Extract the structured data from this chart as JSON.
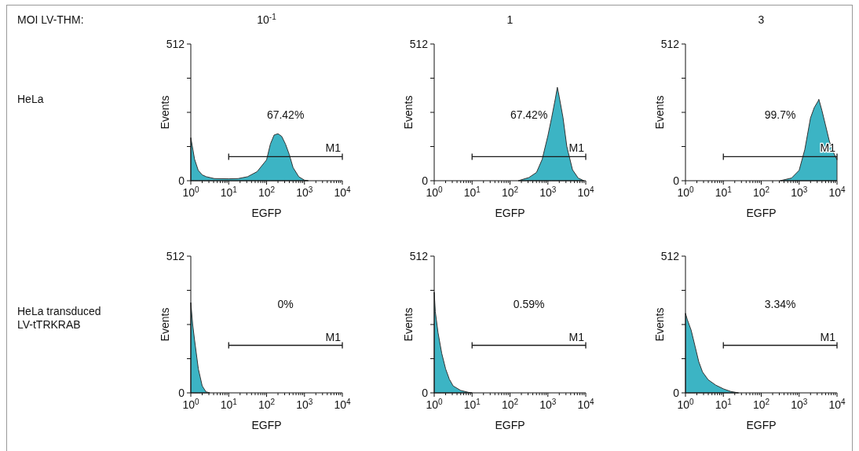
{
  "chart_data": [
    {
      "type": "other",
      "annotations": [
        "MOI LV-THM:",
        "HeLa",
        "HeLa transduced LV-tTRKRAB"
      ]
    },
    {
      "type": "area",
      "title": "10$^{-1}$",
      "xlabel": "EGFP",
      "ylabel": "Events",
      "log": "x",
      "xlim": [
        1,
        10000
      ],
      "ylim": [
        0,
        512
      ],
      "tick_labels": true,
      "xticks": [
        {
          "value": 1,
          "label": "10$^{0}$"
        },
        {
          "value": 2,
          "label": null
        },
        {
          "value": 3,
          "label": null
        },
        {
          "value": 4,
          "label": null
        },
        {
          "value": 5,
          "label": null
        },
        {
          "value": 6,
          "label": null
        },
        {
          "value": 7,
          "label": null
        },
        {
          "value": 8,
          "label": null
        },
        {
          "value": 9,
          "label": null
        },
        {
          "value": 10,
          "label": "10$^{1}$"
        },
        {
          "value": 20,
          "label": null
        },
        {
          "value": 30,
          "label": null
        },
        {
          "value": 40,
          "label": null
        },
        {
          "value": 50,
          "label": null
        },
        {
          "value": 60,
          "label": null
        },
        {
          "value": 70,
          "label": null
        },
        {
          "value": 80,
          "label": null
        },
        {
          "value": 90,
          "label": null
        },
        {
          "value": 100,
          "label": "10$^{2}$"
        },
        {
          "value": 200,
          "label": null
        },
        {
          "value": 300,
          "label": null
        },
        {
          "value": 400,
          "label": null
        },
        {
          "value": 500,
          "label": null
        },
        {
          "value": 600,
          "label": null
        },
        {
          "value": 700,
          "label": null
        },
        {
          "value": 800,
          "label": null
        },
        {
          "value": 900,
          "label": null
        },
        {
          "value": 1000,
          "label": "10$^{3}$"
        },
        {
          "value": 2000,
          "label": null
        },
        {
          "value": 3000,
          "label": null
        },
        {
          "value": 4000,
          "label": null
        },
        {
          "value": 5000,
          "label": null
        },
        {
          "value": 6000,
          "label": null
        },
        {
          "value": 7000,
          "label": null
        },
        {
          "value": 8000,
          "label": null
        },
        {
          "value": 9000,
          "label": null
        },
        {
          "value": 10000,
          "label": "10$^{4}$"
        }
      ],
      "yticks": [
        {
          "value": 0,
          "label": "0"
        },
        {
          "value": 128,
          "label": null
        },
        {
          "value": 256,
          "label": null
        },
        {
          "value": 384,
          "label": null
        },
        {
          "value": 512,
          "label": "512"
        }
      ],
      "series": [
        {
          "color": "#3cb4c4",
          "x": [
            1,
            1.26,
            1.57,
            2.0,
            2.56,
            4.17,
            10,
            17.8,
            31.6,
            56.2,
            100,
            126,
            158,
            200,
            251,
            316,
            398,
            501,
            708,
            1000,
            1259
          ],
          "values": [
            161,
            80,
            39,
            22,
            15,
            8,
            7,
            8,
            15,
            34,
            78,
            137,
            171,
            176,
            166,
            137,
            98,
            49,
            15,
            2,
            0
          ]
        },
        {
          "type": "line",
          "name": "M1",
          "color": "#1a1a1a",
          "x": [
            10,
            10000
          ],
          "values": [
            90,
            90
          ]
        }
      ],
      "annotations": [
        "67.42%"
      ]
    },
    {
      "type": "area",
      "title": "1",
      "xlabel": "EGFP",
      "ylabel": "Events",
      "log": "x",
      "xlim": [
        1,
        10000
      ],
      "ylim": [
        0,
        512
      ],
      "xticks": [
        {
          "value": 1,
          "label": "10$^{0}$"
        },
        {
          "value": 2,
          "label": null
        },
        {
          "value": 3,
          "label": null
        },
        {
          "value": 4,
          "label": null
        },
        {
          "value": 5,
          "label": null
        },
        {
          "value": 6,
          "label": null
        },
        {
          "value": 7,
          "label": null
        },
        {
          "value": 8,
          "label": null
        },
        {
          "value": 9,
          "label": null
        },
        {
          "value": 10,
          "label": "10$^{1}$"
        },
        {
          "value": 20,
          "label": null
        },
        {
          "value": 30,
          "label": null
        },
        {
          "value": 40,
          "label": null
        },
        {
          "value": 50,
          "label": null
        },
        {
          "value": 60,
          "label": null
        },
        {
          "value": 70,
          "label": null
        },
        {
          "value": 80,
          "label": null
        },
        {
          "value": 90,
          "label": null
        },
        {
          "value": 100,
          "label": "10$^{2}$"
        },
        {
          "value": 200,
          "label": null
        },
        {
          "value": 300,
          "label": null
        },
        {
          "value": 400,
          "label": null
        },
        {
          "value": 500,
          "label": null
        },
        {
          "value": 600,
          "label": null
        },
        {
          "value": 700,
          "label": null
        },
        {
          "value": 800,
          "label": null
        },
        {
          "value": 900,
          "label": null
        },
        {
          "value": 1000,
          "label": "10$^{3}$"
        },
        {
          "value": 2000,
          "label": null
        },
        {
          "value": 3000,
          "label": null
        },
        {
          "value": 4000,
          "label": null
        },
        {
          "value": 5000,
          "label": null
        },
        {
          "value": 6000,
          "label": null
        },
        {
          "value": 7000,
          "label": null
        },
        {
          "value": 8000,
          "label": null
        },
        {
          "value": 9000,
          "label": null
        },
        {
          "value": 10000,
          "label": "10$^{4}$"
        }
      ],
      "yticks": [
        {
          "value": 0,
          "label": "0"
        },
        {
          "value": 128,
          "label": null
        },
        {
          "value": 256,
          "label": null
        },
        {
          "value": 384,
          "label": null
        },
        {
          "value": 512,
          "label": "512"
        }
      ],
      "series": [
        {
          "color": "#3cb4c4",
          "x": [
            166,
            316,
            501,
            708,
            1000,
            1259,
            1585,
            1778,
            1995,
            2512,
            3162,
            4467,
            6310,
            8913
          ],
          "values": [
            0,
            12,
            31,
            80,
            168,
            236,
            309,
            350,
            314,
            236,
            129,
            41,
            10,
            0
          ]
        },
        {
          "type": "line",
          "name": "M1",
          "color": "#1a1a1a",
          "x": [
            10,
            10000
          ],
          "values": [
            90,
            90
          ]
        }
      ],
      "annotations": [
        "67.42%"
      ]
    },
    {
      "type": "area",
      "title": "3",
      "xlabel": "EGFP",
      "ylabel": "Events",
      "log": "x",
      "xlim": [
        1,
        10000
      ],
      "ylim": [
        0,
        512
      ],
      "xticks": [
        {
          "value": 1,
          "label": "10$^{0}$"
        },
        {
          "value": 2,
          "label": null
        },
        {
          "value": 3,
          "label": null
        },
        {
          "value": 4,
          "label": null
        },
        {
          "value": 5,
          "label": null
        },
        {
          "value": 6,
          "label": null
        },
        {
          "value": 7,
          "label": null
        },
        {
          "value": 8,
          "label": null
        },
        {
          "value": 9,
          "label": null
        },
        {
          "value": 10,
          "label": "10$^{1}$"
        },
        {
          "value": 20,
          "label": null
        },
        {
          "value": 30,
          "label": null
        },
        {
          "value": 40,
          "label": null
        },
        {
          "value": 50,
          "label": null
        },
        {
          "value": 60,
          "label": null
        },
        {
          "value": 70,
          "label": null
        },
        {
          "value": 80,
          "label": null
        },
        {
          "value": 90,
          "label": null
        },
        {
          "value": 100,
          "label": "10$^{2}$"
        },
        {
          "value": 200,
          "label": null
        },
        {
          "value": 300,
          "label": null
        },
        {
          "value": 400,
          "label": null
        },
        {
          "value": 500,
          "label": null
        },
        {
          "value": 600,
          "label": null
        },
        {
          "value": 700,
          "label": null
        },
        {
          "value": 800,
          "label": null
        },
        {
          "value": 900,
          "label": null
        },
        {
          "value": 1000,
          "label": "10$^{3}$"
        },
        {
          "value": 2000,
          "label": null
        },
        {
          "value": 3000,
          "label": null
        },
        {
          "value": 4000,
          "label": null
        },
        {
          "value": 5000,
          "label": null
        },
        {
          "value": 6000,
          "label": null
        },
        {
          "value": 7000,
          "label": null
        },
        {
          "value": 8000,
          "label": null
        },
        {
          "value": 9000,
          "label": null
        },
        {
          "value": 10000,
          "label": "10$^{4}$"
        }
      ],
      "yticks": [
        {
          "value": 0,
          "label": "0"
        },
        {
          "value": 128,
          "label": null
        },
        {
          "value": 256,
          "label": null
        },
        {
          "value": 384,
          "label": null
        },
        {
          "value": 512,
          "label": "512"
        }
      ],
      "series": [
        {
          "color": "#3cb4c4",
          "x": [
            316,
            631,
            1000,
            1413,
            1995,
            2512,
            3162,
            3311,
            3981,
            5012,
            6310,
            7943,
            10000
          ],
          "values": [
            0,
            10,
            39,
            117,
            235,
            274,
            298,
            305,
            264,
            206,
            147,
            108,
            78
          ]
        },
        {
          "type": "line",
          "name": "M1",
          "color": "#1a1a1a",
          "x": [
            10,
            10000
          ],
          "values": [
            90,
            90
          ]
        }
      ],
      "annotations": [
        "99.7%"
      ]
    },
    {
      "type": "area",
      "xlabel": "EGFP",
      "ylabel": "Events",
      "log": "x",
      "xlim": [
        1,
        10000
      ],
      "ylim": [
        0,
        512
      ],
      "xticks": [
        {
          "value": 1,
          "label": "10$^{0}$"
        },
        {
          "value": 2,
          "label": null
        },
        {
          "value": 3,
          "label": null
        },
        {
          "value": 4,
          "label": null
        },
        {
          "value": 5,
          "label": null
        },
        {
          "value": 6,
          "label": null
        },
        {
          "value": 7,
          "label": null
        },
        {
          "value": 8,
          "label": null
        },
        {
          "value": 9,
          "label": null
        },
        {
          "value": 10,
          "label": "10$^{1}$"
        },
        {
          "value": 20,
          "label": null
        },
        {
          "value": 30,
          "label": null
        },
        {
          "value": 40,
          "label": null
        },
        {
          "value": 50,
          "label": null
        },
        {
          "value": 60,
          "label": null
        },
        {
          "value": 70,
          "label": null
        },
        {
          "value": 80,
          "label": null
        },
        {
          "value": 90,
          "label": null
        },
        {
          "value": 100,
          "label": "10$^{2}$"
        },
        {
          "value": 200,
          "label": null
        },
        {
          "value": 300,
          "label": null
        },
        {
          "value": 400,
          "label": null
        },
        {
          "value": 500,
          "label": null
        },
        {
          "value": 600,
          "label": null
        },
        {
          "value": 700,
          "label": null
        },
        {
          "value": 800,
          "label": null
        },
        {
          "value": 900,
          "label": null
        },
        {
          "value": 1000,
          "label": "10$^{3}$"
        },
        {
          "value": 2000,
          "label": null
        },
        {
          "value": 3000,
          "label": null
        },
        {
          "value": 4000,
          "label": null
        },
        {
          "value": 5000,
          "label": null
        },
        {
          "value": 6000,
          "label": null
        },
        {
          "value": 7000,
          "label": null
        },
        {
          "value": 8000,
          "label": null
        },
        {
          "value": 9000,
          "label": null
        },
        {
          "value": 10000,
          "label": "10$^{4}$"
        }
      ],
      "yticks": [
        {
          "value": 0,
          "label": "0"
        },
        {
          "value": 128,
          "label": null
        },
        {
          "value": 256,
          "label": null
        },
        {
          "value": 384,
          "label": null
        },
        {
          "value": 512,
          "label": "512"
        }
      ],
      "series": [
        {
          "color": "#3cb4c4",
          "x": [
            1,
            1.12,
            1.26,
            1.58,
            2.0,
            2.51,
            3.16
          ],
          "values": [
            338,
            256,
            197,
            90,
            26,
            4,
            0
          ]
        },
        {
          "type": "line",
          "name": "M1",
          "color": "#1a1a1a",
          "x": [
            10,
            10000
          ],
          "values": [
            178,
            178
          ]
        }
      ],
      "annotations": [
        "0%"
      ]
    },
    {
      "type": "area",
      "xlabel": "EGFP",
      "ylabel": "Events",
      "log": "x",
      "xlim": [
        1,
        10000
      ],
      "ylim": [
        0,
        512
      ],
      "xticks": [
        {
          "value": 1,
          "label": "10$^{0}$"
        },
        {
          "value": 2,
          "label": null
        },
        {
          "value": 3,
          "label": null
        },
        {
          "value": 4,
          "label": null
        },
        {
          "value": 5,
          "label": null
        },
        {
          "value": 6,
          "label": null
        },
        {
          "value": 7,
          "label": null
        },
        {
          "value": 8,
          "label": null
        },
        {
          "value": 9,
          "label": null
        },
        {
          "value": 10,
          "label": "10$^{1}$"
        },
        {
          "value": 20,
          "label": null
        },
        {
          "value": 30,
          "label": null
        },
        {
          "value": 40,
          "label": null
        },
        {
          "value": 50,
          "label": null
        },
        {
          "value": 60,
          "label": null
        },
        {
          "value": 70,
          "label": null
        },
        {
          "value": 80,
          "label": null
        },
        {
          "value": 90,
          "label": null
        },
        {
          "value": 100,
          "label": "10$^{2}$"
        },
        {
          "value": 200,
          "label": null
        },
        {
          "value": 300,
          "label": null
        },
        {
          "value": 400,
          "label": null
        },
        {
          "value": 500,
          "label": null
        },
        {
          "value": 600,
          "label": null
        },
        {
          "value": 700,
          "label": null
        },
        {
          "value": 800,
          "label": null
        },
        {
          "value": 900,
          "label": null
        },
        {
          "value": 1000,
          "label": "10$^{3}$"
        },
        {
          "value": 2000,
          "label": null
        },
        {
          "value": 3000,
          "label": null
        },
        {
          "value": 4000,
          "label": null
        },
        {
          "value": 5000,
          "label": null
        },
        {
          "value": 6000,
          "label": null
        },
        {
          "value": 7000,
          "label": null
        },
        {
          "value": 8000,
          "label": null
        },
        {
          "value": 9000,
          "label": null
        },
        {
          "value": 10000,
          "label": "10$^{4}$"
        }
      ],
      "yticks": [
        {
          "value": 0,
          "label": "0"
        },
        {
          "value": 128,
          "label": null
        },
        {
          "value": 256,
          "label": null
        },
        {
          "value": 384,
          "label": null
        },
        {
          "value": 512,
          "label": "512"
        }
      ],
      "series": [
        {
          "color": "#3cb4c4",
          "x": [
            1,
            1.07,
            1.26,
            1.58,
            2.0,
            2.51,
            3.16,
            5.01,
            7.94,
            10
          ],
          "values": [
            377,
            304,
            226,
            148,
            90,
            51,
            26,
            9,
            2,
            0
          ]
        },
        {
          "type": "line",
          "name": "M1",
          "color": "#1a1a1a",
          "x": [
            10,
            10000
          ],
          "values": [
            178,
            178
          ]
        }
      ],
      "annotations": [
        "0.59%"
      ]
    },
    {
      "type": "area",
      "xlabel": "EGFP",
      "ylabel": "Events",
      "log": "x",
      "xlim": [
        1,
        10000
      ],
      "ylim": [
        0,
        512
      ],
      "xticks": [
        {
          "value": 1,
          "label": "10$^{0}$"
        },
        {
          "value": 2,
          "label": null
        },
        {
          "value": 3,
          "label": null
        },
        {
          "value": 4,
          "label": null
        },
        {
          "value": 5,
          "label": null
        },
        {
          "value": 6,
          "label": null
        },
        {
          "value": 7,
          "label": null
        },
        {
          "value": 8,
          "label": null
        },
        {
          "value": 9,
          "label": null
        },
        {
          "value": 10,
          "label": "10$^{1}$"
        },
        {
          "value": 20,
          "label": null
        },
        {
          "value": 30,
          "label": null
        },
        {
          "value": 40,
          "label": null
        },
        {
          "value": 50,
          "label": null
        },
        {
          "value": 60,
          "label": null
        },
        {
          "value": 70,
          "label": null
        },
        {
          "value": 80,
          "label": null
        },
        {
          "value": 90,
          "label": null
        },
        {
          "value": 100,
          "label": "10$^{2}$"
        },
        {
          "value": 200,
          "label": null
        },
        {
          "value": 300,
          "label": null
        },
        {
          "value": 400,
          "label": null
        },
        {
          "value": 500,
          "label": null
        },
        {
          "value": 600,
          "label": null
        },
        {
          "value": 700,
          "label": null
        },
        {
          "value": 800,
          "label": null
        },
        {
          "value": 900,
          "label": null
        },
        {
          "value": 1000,
          "label": "10$^{3}$"
        },
        {
          "value": 2000,
          "label": null
        },
        {
          "value": 3000,
          "label": null
        },
        {
          "value": 4000,
          "label": null
        },
        {
          "value": 5000,
          "label": null
        },
        {
          "value": 6000,
          "label": null
        },
        {
          "value": 7000,
          "label": null
        },
        {
          "value": 8000,
          "label": null
        },
        {
          "value": 9000,
          "label": null
        },
        {
          "value": 10000,
          "label": "10$^{4}$"
        }
      ],
      "yticks": [
        {
          "value": 0,
          "label": "0"
        },
        {
          "value": 128,
          "label": null
        },
        {
          "value": 256,
          "label": null
        },
        {
          "value": 384,
          "label": null
        },
        {
          "value": 512,
          "label": "512"
        }
      ],
      "series": [
        {
          "color": "#3cb4c4",
          "x": [
            1,
            1.12,
            1.41,
            1.78,
            2.24,
            2.82,
            3.98,
            6.31,
            10,
            15.8,
            25.1
          ],
          "values": [
            298,
            274,
            235,
            176,
            117,
            78,
            49,
            29,
            15,
            5,
            0
          ]
        },
        {
          "type": "line",
          "name": "M1",
          "color": "#1a1a1a",
          "x": [
            10,
            10000
          ],
          "values": [
            178,
            178
          ]
        }
      ],
      "annotations": [
        "3.34%"
      ]
    }
  ]
}
